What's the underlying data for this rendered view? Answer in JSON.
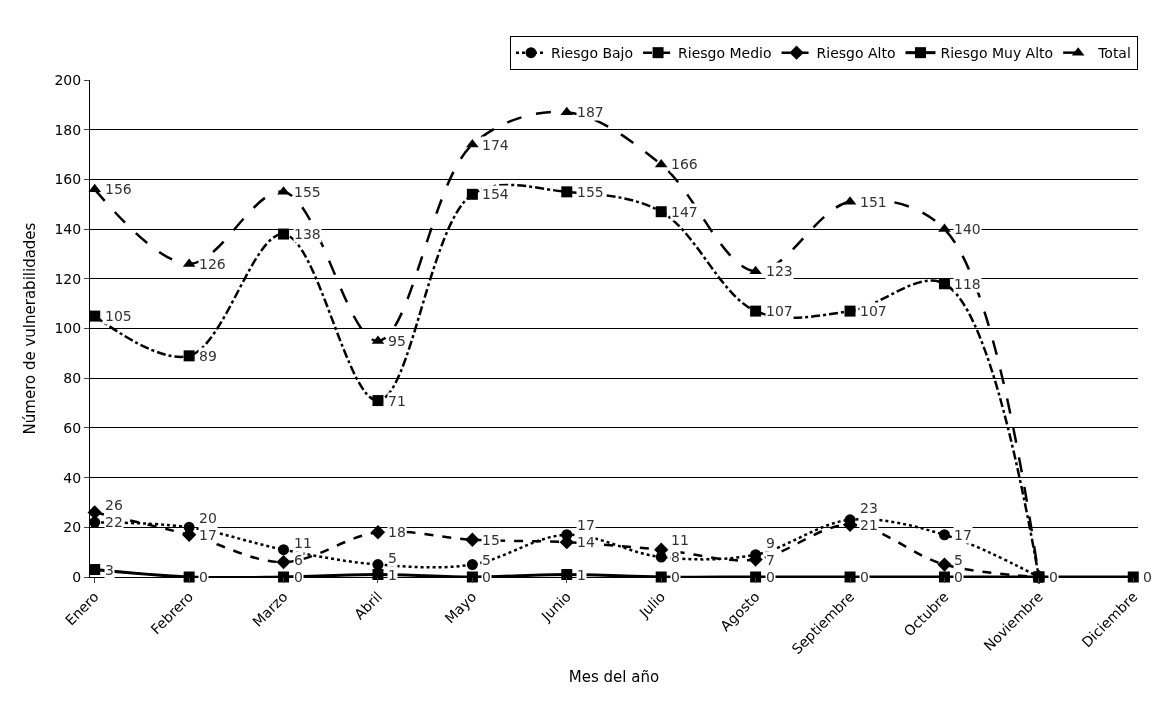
{
  "chart_data": {
    "type": "line",
    "xlabel": "Mes del año",
    "ylabel": "Número de vulnerabilidades",
    "categories": [
      "Enero",
      "Febrero",
      "Marzo",
      "Abril",
      "Mayo",
      "Junio",
      "Julio",
      "Agosto",
      "Septiembre",
      "Octubre",
      "Noviembre",
      "Diciembre"
    ],
    "series": [
      {
        "name": "Riesgo Bajo",
        "color": "#000000",
        "marker": "circle",
        "line_style": "dotted",
        "values": [
          22,
          20,
          11,
          5,
          5,
          17,
          8,
          9,
          23,
          17,
          0,
          null
        ],
        "value_labels": [
          "22",
          "20",
          "11",
          "5",
          "5",
          "17",
          "8",
          "9",
          "23",
          "17",
          null,
          null
        ]
      },
      {
        "name": "Riesgo Medio",
        "color": "#000000",
        "marker": "square",
        "line_style": "dashdot",
        "values": [
          105,
          89,
          138,
          71,
          154,
          155,
          147,
          107,
          107,
          118,
          0,
          null
        ],
        "value_labels": [
          "105",
          "89",
          "138",
          "71",
          "154",
          "155",
          "147",
          "107",
          "107",
          "118",
          null,
          null
        ]
      },
      {
        "name": "Riesgo Alto",
        "color": "#000000",
        "marker": "diamond",
        "line_style": "dashed",
        "values": [
          26,
          17,
          6,
          18,
          15,
          14,
          11,
          7,
          21,
          5,
          0,
          null
        ],
        "value_labels": [
          "26",
          "17",
          "6",
          "18",
          "15",
          "14",
          "11",
          "7",
          "21",
          "5",
          null,
          null
        ]
      },
      {
        "name": "Riesgo Muy Alto",
        "color": "#000000",
        "marker": "square",
        "line_style": "solid",
        "values": [
          3,
          0,
          0,
          1,
          0,
          1,
          0,
          0,
          0,
          0,
          0,
          0
        ],
        "value_labels": [
          "3",
          "0",
          "0",
          "1",
          "0",
          "1",
          "0",
          "0",
          "0",
          "0",
          "0",
          "0"
        ]
      },
      {
        "name": "Total",
        "color": "#000000",
        "marker": "triangle",
        "line_style": "longdash",
        "values": [
          156,
          126,
          155,
          95,
          174,
          187,
          166,
          123,
          151,
          140,
          0,
          null
        ],
        "value_labels": [
          "156",
          "126",
          "155",
          "95",
          "174",
          "187",
          "166",
          "123",
          "151",
          "140",
          null,
          null
        ]
      }
    ],
    "ylim": [
      0,
      200
    ],
    "yticks": [
      0,
      20,
      40,
      60,
      80,
      100,
      120,
      140,
      160,
      180,
      200
    ],
    "grid": "y",
    "legend": "top"
  }
}
